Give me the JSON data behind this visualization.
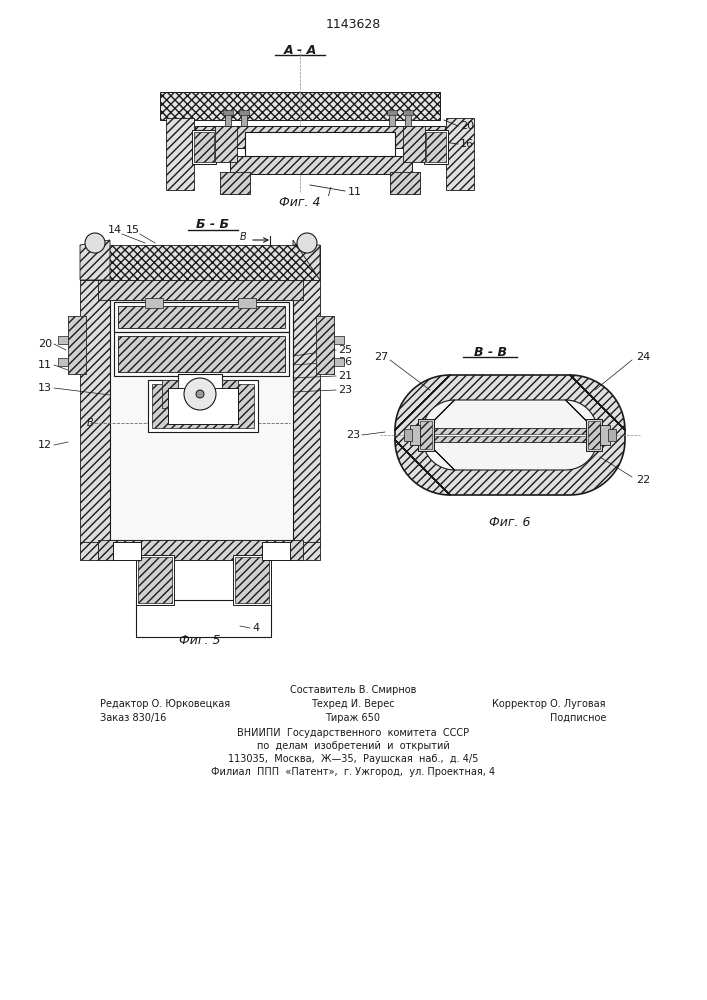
{
  "title": "1143628",
  "fig4_label": "А - А",
  "fig5_label": "Б - Б",
  "fig4_caption": "Фиг. 4",
  "fig5_caption": "Фиг. 5",
  "fig6_caption": "Фиг. 6",
  "fig6_label": "В - В",
  "footer_line1": "Составитель В. Смирнов",
  "footer_line2_left": "Редактор О. Юрковецкая",
  "footer_line2_mid": "Техред И. Верес",
  "footer_line2_right": "Корректор О. Луговая",
  "footer_line3_left": "Заказ 830/16",
  "footer_line3_mid": "Тираж 650",
  "footer_line3_right": "Подписное",
  "footer_line4": "ВНИИПИ  Государственного  комитета  СССР",
  "footer_line5": "по  делам  изобретений  и  открытий",
  "footer_line6": "113035,  Москва,  Ж—35,  Раушская  наб.,  д. 4/5",
  "footer_line7": "Филиал  ППП  «Патент»,  г. Ужгород,  ул. Проектная, 4",
  "bg_color": "#ffffff",
  "line_color": "#1a1a1a"
}
